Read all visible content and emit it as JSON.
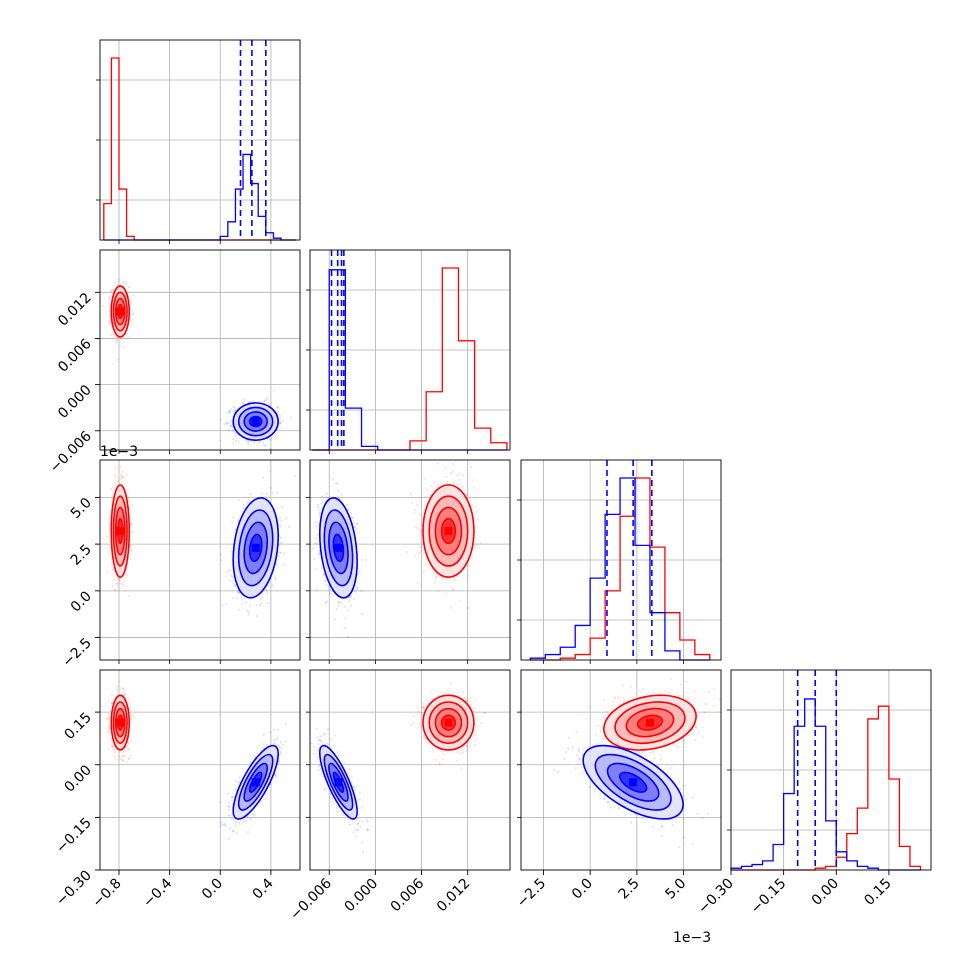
{
  "chart_data": {
    "type": "corner",
    "grid": true,
    "colors": {
      "red": "#ff0000",
      "blue": "#0000ff"
    },
    "parameters": [
      {
        "id": "p0",
        "range": [
          -0.95,
          0.63
        ],
        "ticks": [
          -0.8,
          -0.4,
          0.0,
          0.4
        ],
        "tick_labels": [
          "−0.8",
          "−0.4",
          "0.0",
          "0.4"
        ],
        "offset_label": ""
      },
      {
        "id": "p1",
        "range": [
          -0.0085,
          0.0175
        ],
        "ticks": [
          -0.006,
          0.0,
          0.006,
          0.012
        ],
        "tick_labels": [
          "−0.006",
          "0.000",
          "0.006",
          "0.012"
        ],
        "offset_label": ""
      },
      {
        "id": "p2",
        "range": [
          -3.7,
          7.0
        ],
        "ticks": [
          -2.5,
          0.0,
          2.5,
          5.0
        ],
        "tick_labels": [
          "−2.5",
          "0.0",
          "2.5",
          "5.0"
        ],
        "offset_label": "1e−3"
      },
      {
        "id": "p3",
        "range": [
          -0.3,
          0.27
        ],
        "ticks": [
          -0.3,
          -0.15,
          0.0,
          0.15
        ],
        "tick_labels": [
          "−0.30",
          "−0.15",
          "0.00",
          "0.15"
        ],
        "offset_label": ""
      }
    ],
    "series": [
      {
        "color": "red",
        "mean": [
          -0.79,
          0.0095,
          3.2,
          0.12
        ],
        "cov": [
          [
            0.0012,
            0,
            0,
            0
          ],
          [
            0,
            2.6e-06,
            0,
            0
          ],
          [
            0,
            0,
            1.45,
            0.0104
          ],
          [
            0,
            0,
            0.0104,
            0.00144
          ]
        ]
      },
      {
        "color": "blue",
        "mean": [
          0.28,
          -0.0048,
          2.3,
          -0.05
        ],
        "cov": [
          [
            0.0075,
            0,
            0.026,
            0.0034
          ],
          [
            0,
            1.4e-06,
            -0.00042,
            -4.8e-05
          ],
          [
            0.026,
            -0.00042,
            1.7,
            -0.04
          ],
          [
            0.0034,
            -4.8e-05,
            -0.04,
            0.0026
          ]
        ]
      }
    ],
    "histograms": [
      {
        "param": "p0",
        "bin_edges": [
          -0.92,
          -0.86,
          -0.8,
          -0.74,
          -0.68,
          0.0,
          0.06,
          0.12,
          0.18,
          0.24,
          0.3,
          0.36,
          0.42,
          0.48,
          0.54,
          0.6
        ],
        "series": {
          "red": [
            0.2,
            1.0,
            0.28,
            0.02,
            0,
            0,
            0,
            0,
            0,
            0,
            0,
            0,
            0,
            0,
            0
          ],
          "blue": [
            0,
            0,
            0,
            0,
            0,
            0.02,
            0.1,
            0.28,
            0.47,
            0.31,
            0.13,
            0.04,
            0.01,
            0,
            0
          ]
        },
        "quantiles": [
          0.16,
          0.25,
          0.36
        ]
      },
      {
        "param": "p1",
        "bin_edges": [
          -0.0082,
          -0.006,
          -0.0039,
          -0.0018,
          0.0003,
          0.0024,
          0.0045,
          0.0066,
          0.0087,
          0.0108,
          0.0129,
          0.015,
          0.0171
        ],
        "series": {
          "red": [
            0,
            0,
            0,
            0,
            0,
            0,
            0.05,
            0.32,
            1.0,
            0.6,
            0.12,
            0.04
          ],
          "blue": [
            0,
            0.99,
            0.23,
            0.02,
            0,
            0,
            0,
            0,
            0,
            0,
            0,
            0
          ]
        },
        "quantiles": [
          -0.0057,
          -0.0049,
          -0.0044,
          -0.0041
        ]
      },
      {
        "param": "p2",
        "bin_edges": [
          -3.2,
          -2.4,
          -1.6,
          -0.8,
          0.0,
          0.8,
          1.6,
          2.4,
          3.2,
          4.0,
          4.8,
          5.6,
          6.4
        ],
        "series": {
          "red": [
            0,
            0,
            0.01,
            0.03,
            0.12,
            0.38,
            0.79,
            1.0,
            0.62,
            0.26,
            0.11,
            0.03
          ],
          "blue": [
            0.01,
            0.03,
            0.07,
            0.19,
            0.45,
            0.8,
            1.0,
            0.63,
            0.26,
            0.05,
            0,
            0
          ]
        },
        "quantiles": [
          0.9,
          2.3,
          3.3
        ]
      },
      {
        "param": "p3",
        "bin_edges": [
          -0.3,
          -0.27,
          -0.24,
          -0.21,
          -0.18,
          -0.15,
          -0.12,
          -0.09,
          -0.06,
          -0.03,
          0.0,
          0.03,
          0.06,
          0.09,
          0.12,
          0.15,
          0.18,
          0.21,
          0.24
        ],
        "series": {
          "red": [
            0,
            0,
            0,
            0,
            0,
            0,
            0,
            0,
            0.01,
            0.02,
            0.07,
            0.2,
            0.34,
            0.83,
            0.9,
            0.5,
            0.13,
            0.02
          ],
          "blue": [
            0.01,
            0.02,
            0.03,
            0.05,
            0.14,
            0.42,
            0.79,
            0.94,
            0.79,
            0.27,
            0.1,
            0.05,
            0.02,
            0.01,
            0,
            0,
            0,
            0
          ]
        },
        "quantiles": [
          -0.11,
          -0.06,
          0.0
        ]
      }
    ]
  }
}
